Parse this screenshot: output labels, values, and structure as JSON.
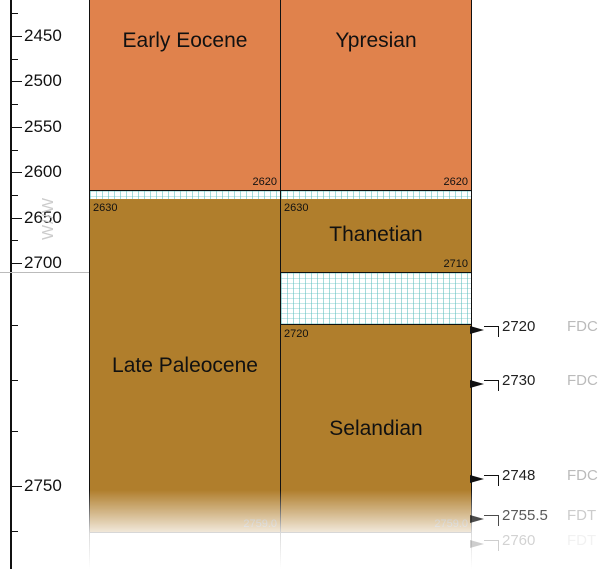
{
  "depth_axis": {
    "labels": [
      "2450",
      "2500",
      "2550",
      "2600",
      "2650",
      "2700",
      "2750"
    ]
  },
  "watermark": "W//W",
  "epoch_column": {
    "units": [
      {
        "name": "Early Eocene",
        "bottom_age": "2620"
      },
      {
        "name": "Late Paleocene",
        "top_age": "2630",
        "bottom_age": "2759.0"
      }
    ]
  },
  "age_column": {
    "units": [
      {
        "name": "Ypresian",
        "bottom_age": "2620"
      },
      {
        "name": "Thanetian",
        "top_age": "2630",
        "bottom_age": "2710"
      },
      {
        "name": "Selandian",
        "top_age": "2720",
        "bottom_age": "2759.0"
      }
    ]
  },
  "markers": [
    {
      "value": "2720",
      "code": "FDC"
    },
    {
      "value": "2730",
      "code": "FDC"
    },
    {
      "value": "2748",
      "code": "FDC"
    },
    {
      "value": "2755.5",
      "code": "FDT"
    },
    {
      "value": "2760",
      "code": "FDT"
    }
  ],
  "colors": {
    "early_eocene": "#e0824c",
    "late_paleocene": "#b07e2c",
    "hiatus_hatch": "#5abebe"
  }
}
